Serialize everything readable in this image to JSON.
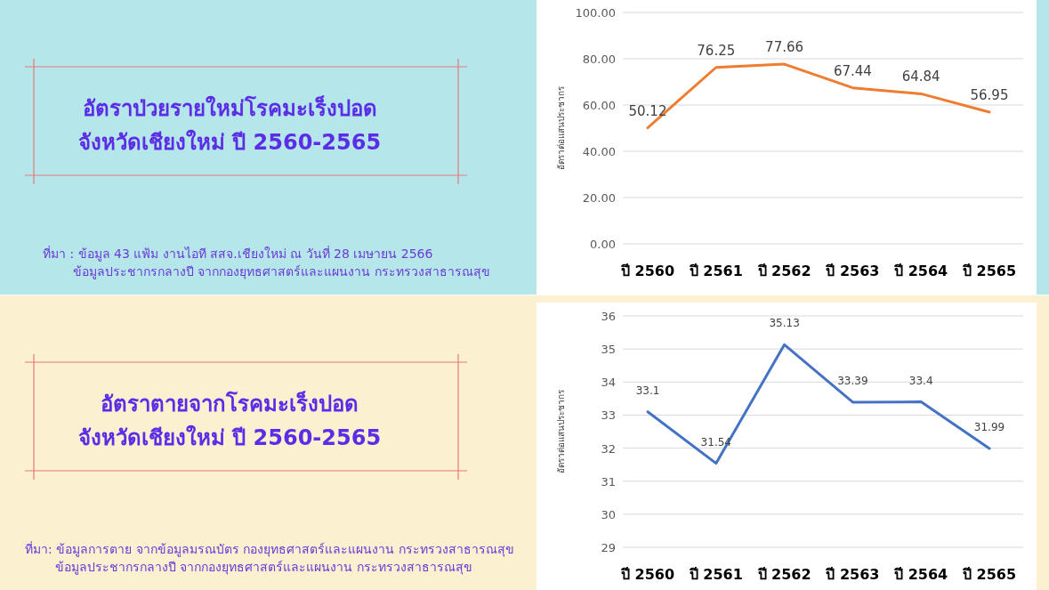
{
  "chart_data": [
    {
      "type": "other",
      "title": "อัตราป่วยรายใหม่โรคมะเร็งปอด\nจังหวัดเชียงใหม่ ปี 2560-2565",
      "annotations": [
        "ที่มา : ข้อมูล 43 แฟ้ม งานไอที สสจ.เชียงใหม่ ณ วันที่  28 เมษายน 2566",
        "ข้อมูลประชากรกลางปี จากกองยุทธศาสตร์และแผนงาน กระทรวงสาธารณสุข"
      ]
    },
    {
      "type": "line",
      "ylabel": "อัตราต่อแสนประชากร",
      "categories": [
        "ปี 2560",
        "ปี 2561",
        "ปี 2562",
        "ปี 2563",
        "ปี 2564",
        "ปี 2565"
      ],
      "series": [
        {
          "color": "#ed7d31",
          "values": [
            50.12,
            76.25,
            77.66,
            67.44,
            64.84,
            56.95
          ]
        }
      ],
      "ylim": [
        0,
        100
      ],
      "yticks": [
        {
          "value": 0,
          "label": "0.00"
        },
        {
          "value": 20,
          "label": "20.00"
        },
        {
          "value": 40,
          "label": "40.00"
        },
        {
          "value": 60,
          "label": "60.00"
        },
        {
          "value": 80,
          "label": "80.00"
        },
        {
          "value": 100,
          "label": "100.00"
        }
      ],
      "grid": "y",
      "data_labels": true,
      "marker": "none",
      "line_style": "solid"
    },
    {
      "type": "other",
      "title": "อัตราตายจากโรคมะเร็งปอด\nจังหวัดเชียงใหม่ ปี 2560-2565",
      "annotations": [
        "ที่มา: ข้อมูลการตาย จากข้อมูลมรณบัตร กองยุทธศาสตร์และแผนงาน กระทรวงสาธารณสุข",
        "ข้อมูลประชากรกลางปี จากกองยุทธศาสตร์และแผนงาน กระทรวงสาธารณสุข"
      ]
    },
    {
      "type": "line",
      "ylabel": "อัตราต่อแสนประชากร",
      "categories": [
        "ปี 2560",
        "ปี 2561",
        "ปี 2562",
        "ปี 2563",
        "ปี 2564",
        "ปี 2565"
      ],
      "series": [
        {
          "color": "#4472c4",
          "values": [
            33.1,
            31.54,
            35.13,
            33.39,
            33.4,
            31.99
          ]
        }
      ],
      "ylim": [
        29,
        36
      ],
      "yticks": [
        29,
        30,
        31,
        32,
        33,
        34,
        35,
        36
      ],
      "grid": "y",
      "data_labels": true,
      "marker": "none",
      "line_style": "solid"
    }
  ]
}
